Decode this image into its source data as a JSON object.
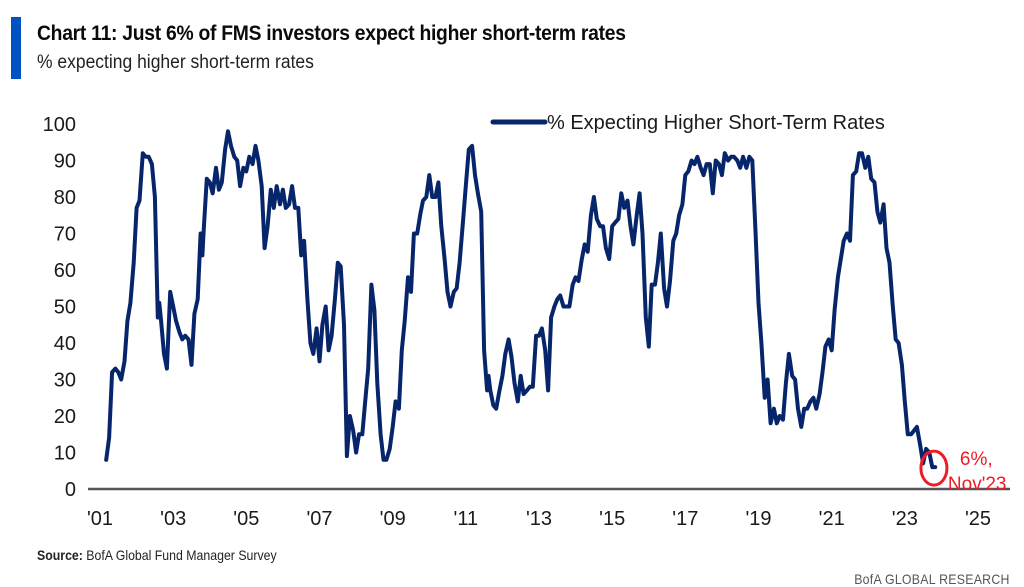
{
  "header": {
    "title": "Chart 11: Just 6% of FMS investors expect higher short-term rates",
    "subtitle": "% expecting higher short-term rates"
  },
  "footer": {
    "source_label": "Source:",
    "source_text": "BofA Global Fund Manager Survey",
    "brand": "BofA GLOBAL RESEARCH"
  },
  "colors": {
    "series": "#06256b",
    "accent_bar": "#0052c2",
    "annotation": "#ee1c25",
    "axis": "#555555"
  },
  "chart_data": {
    "type": "line",
    "title": "Chart 11: Just 6% of FMS investors expect higher short-term rates",
    "subtitle": "% expecting higher short-term rates",
    "xlabel": "",
    "ylabel": "",
    "xlim": [
      2001,
      2025
    ],
    "ylim": [
      0,
      100
    ],
    "x_ticks": [
      2001,
      2003,
      2005,
      2007,
      2009,
      2011,
      2013,
      2015,
      2017,
      2019,
      2021,
      2023,
      2025
    ],
    "x_tick_labels": [
      "'01",
      "'03",
      "'05",
      "'07",
      "'09",
      "'11",
      "'13",
      "'15",
      "'17",
      "'19",
      "'21",
      "'23",
      "'25"
    ],
    "y_ticks": [
      0,
      10,
      20,
      30,
      40,
      50,
      60,
      70,
      80,
      90,
      100
    ],
    "y_tick_labels": [
      "0",
      "10",
      "20",
      "30",
      "40",
      "50",
      "60",
      "70",
      "80",
      "90",
      "100"
    ],
    "grid": false,
    "legend": {
      "position": "top-center",
      "entries": [
        "% Expecting Higher Short-Term Rates"
      ]
    },
    "annotation": {
      "text_line1": "6%,",
      "text_line2": "Nov'23",
      "x": 2023.85,
      "y": 6
    },
    "series": [
      {
        "name": "% Expecting Higher Short-Term Rates",
        "points": [
          [
            2001.17,
            8
          ],
          [
            2001.25,
            14
          ],
          [
            2001.33,
            32
          ],
          [
            2001.42,
            33
          ],
          [
            2001.5,
            32
          ],
          [
            2001.58,
            30
          ],
          [
            2001.67,
            35
          ],
          [
            2001.75,
            46
          ],
          [
            2001.83,
            51
          ],
          [
            2001.92,
            62
          ],
          [
            2002.0,
            77
          ],
          [
            2002.08,
            79
          ],
          [
            2002.17,
            92
          ],
          [
            2002.25,
            91
          ],
          [
            2002.33,
            91
          ],
          [
            2002.42,
            89
          ],
          [
            2002.5,
            80
          ],
          [
            2002.58,
            47
          ],
          [
            2002.62,
            51
          ],
          [
            2002.67,
            46
          ],
          [
            2002.75,
            37
          ],
          [
            2002.83,
            33
          ],
          [
            2002.92,
            54
          ],
          [
            2003.0,
            50
          ],
          [
            2003.08,
            46
          ],
          [
            2003.17,
            43
          ],
          [
            2003.25,
            41
          ],
          [
            2003.33,
            42
          ],
          [
            2003.42,
            41
          ],
          [
            2003.5,
            34
          ],
          [
            2003.58,
            48
          ],
          [
            2003.67,
            52
          ],
          [
            2003.75,
            70
          ],
          [
            2003.8,
            64
          ],
          [
            2003.83,
            70
          ],
          [
            2003.92,
            85
          ],
          [
            2004.0,
            84
          ],
          [
            2004.08,
            81
          ],
          [
            2004.17,
            88
          ],
          [
            2004.25,
            82
          ],
          [
            2004.33,
            84
          ],
          [
            2004.42,
            93
          ],
          [
            2004.5,
            98
          ],
          [
            2004.58,
            94
          ],
          [
            2004.67,
            91
          ],
          [
            2004.75,
            90
          ],
          [
            2004.83,
            83
          ],
          [
            2004.92,
            88
          ],
          [
            2005.0,
            87
          ],
          [
            2005.08,
            91
          ],
          [
            2005.17,
            89
          ],
          [
            2005.25,
            94
          ],
          [
            2005.33,
            90
          ],
          [
            2005.42,
            83
          ],
          [
            2005.5,
            66
          ],
          [
            2005.58,
            72
          ],
          [
            2005.67,
            82
          ],
          [
            2005.75,
            77
          ],
          [
            2005.83,
            83
          ],
          [
            2005.92,
            78
          ],
          [
            2006.0,
            82
          ],
          [
            2006.08,
            77
          ],
          [
            2006.17,
            78
          ],
          [
            2006.25,
            83
          ],
          [
            2006.33,
            77
          ],
          [
            2006.42,
            77
          ],
          [
            2006.5,
            64
          ],
          [
            2006.58,
            68
          ],
          [
            2006.67,
            52
          ],
          [
            2006.75,
            40
          ],
          [
            2006.83,
            37
          ],
          [
            2006.92,
            44
          ],
          [
            2007.0,
            35
          ],
          [
            2007.08,
            45
          ],
          [
            2007.17,
            50
          ],
          [
            2007.25,
            38
          ],
          [
            2007.33,
            42
          ],
          [
            2007.42,
            52
          ],
          [
            2007.5,
            62
          ],
          [
            2007.58,
            61
          ],
          [
            2007.67,
            45
          ],
          [
            2007.75,
            9
          ],
          [
            2007.83,
            20
          ],
          [
            2007.92,
            16
          ],
          [
            2008.0,
            10
          ],
          [
            2008.08,
            15
          ],
          [
            2008.17,
            15
          ],
          [
            2008.25,
            24
          ],
          [
            2008.33,
            33
          ],
          [
            2008.42,
            56
          ],
          [
            2008.5,
            49
          ],
          [
            2008.58,
            29
          ],
          [
            2008.67,
            15
          ],
          [
            2008.75,
            8
          ],
          [
            2008.83,
            8
          ],
          [
            2008.92,
            11
          ],
          [
            2009.0,
            17
          ],
          [
            2009.08,
            24
          ],
          [
            2009.17,
            22
          ],
          [
            2009.25,
            38
          ],
          [
            2009.33,
            46
          ],
          [
            2009.42,
            58
          ],
          [
            2009.5,
            54
          ],
          [
            2009.58,
            70
          ],
          [
            2009.67,
            70
          ],
          [
            2009.75,
            75
          ],
          [
            2009.83,
            79
          ],
          [
            2009.92,
            80
          ],
          [
            2010.0,
            86
          ],
          [
            2010.08,
            80
          ],
          [
            2010.17,
            80
          ],
          [
            2010.25,
            84
          ],
          [
            2010.33,
            72
          ],
          [
            2010.42,
            63
          ],
          [
            2010.5,
            54
          ],
          [
            2010.58,
            50
          ],
          [
            2010.67,
            54
          ],
          [
            2010.75,
            55
          ],
          [
            2010.83,
            62
          ],
          [
            2010.92,
            73
          ],
          [
            2011.0,
            83
          ],
          [
            2011.08,
            93
          ],
          [
            2011.17,
            94
          ],
          [
            2011.25,
            86
          ],
          [
            2011.33,
            81
          ],
          [
            2011.42,
            76
          ],
          [
            2011.5,
            38
          ],
          [
            2011.58,
            27
          ],
          [
            2011.62,
            31
          ],
          [
            2011.67,
            27
          ],
          [
            2011.75,
            23
          ],
          [
            2011.83,
            22
          ],
          [
            2011.92,
            27
          ],
          [
            2012.0,
            31
          ],
          [
            2012.08,
            37
          ],
          [
            2012.17,
            41
          ],
          [
            2012.25,
            36
          ],
          [
            2012.33,
            29
          ],
          [
            2012.42,
            24
          ],
          [
            2012.5,
            31
          ],
          [
            2012.58,
            26
          ],
          [
            2012.67,
            27
          ],
          [
            2012.75,
            28
          ],
          [
            2012.83,
            28
          ],
          [
            2012.92,
            42
          ],
          [
            2013.0,
            42
          ],
          [
            2013.08,
            44
          ],
          [
            2013.17,
            38
          ],
          [
            2013.25,
            27
          ],
          [
            2013.33,
            47
          ],
          [
            2013.42,
            50
          ],
          [
            2013.5,
            52
          ],
          [
            2013.58,
            53
          ],
          [
            2013.67,
            50
          ],
          [
            2013.75,
            50
          ],
          [
            2013.83,
            50
          ],
          [
            2013.92,
            56
          ],
          [
            2014.0,
            58
          ],
          [
            2014.08,
            57
          ],
          [
            2014.17,
            63
          ],
          [
            2014.25,
            67
          ],
          [
            2014.33,
            65
          ],
          [
            2014.42,
            75
          ],
          [
            2014.5,
            80
          ],
          [
            2014.58,
            74
          ],
          [
            2014.67,
            72
          ],
          [
            2014.75,
            72
          ],
          [
            2014.83,
            66
          ],
          [
            2014.92,
            63
          ],
          [
            2015.0,
            72
          ],
          [
            2015.08,
            73
          ],
          [
            2015.17,
            74
          ],
          [
            2015.25,
            81
          ],
          [
            2015.33,
            77
          ],
          [
            2015.42,
            79
          ],
          [
            2015.5,
            72
          ],
          [
            2015.58,
            67
          ],
          [
            2015.67,
            75
          ],
          [
            2015.75,
            81
          ],
          [
            2015.83,
            70
          ],
          [
            2015.92,
            47
          ],
          [
            2016.0,
            39
          ],
          [
            2016.08,
            56
          ],
          [
            2016.17,
            56
          ],
          [
            2016.25,
            62
          ],
          [
            2016.33,
            70
          ],
          [
            2016.42,
            55
          ],
          [
            2016.5,
            50
          ],
          [
            2016.58,
            57
          ],
          [
            2016.67,
            68
          ],
          [
            2016.75,
            70
          ],
          [
            2016.83,
            75
          ],
          [
            2016.92,
            78
          ],
          [
            2017.0,
            86
          ],
          [
            2017.08,
            87
          ],
          [
            2017.17,
            90
          ],
          [
            2017.25,
            89
          ],
          [
            2017.33,
            91
          ],
          [
            2017.42,
            88
          ],
          [
            2017.5,
            86
          ],
          [
            2017.58,
            89
          ],
          [
            2017.67,
            89
          ],
          [
            2017.75,
            81
          ],
          [
            2017.83,
            90
          ],
          [
            2017.92,
            89
          ],
          [
            2018.0,
            86
          ],
          [
            2018.08,
            92
          ],
          [
            2018.17,
            90
          ],
          [
            2018.25,
            91
          ],
          [
            2018.33,
            91
          ],
          [
            2018.42,
            90
          ],
          [
            2018.5,
            88
          ],
          [
            2018.58,
            91
          ],
          [
            2018.67,
            88
          ],
          [
            2018.75,
            91
          ],
          [
            2018.83,
            90
          ],
          [
            2018.92,
            70
          ],
          [
            2019.0,
            51
          ],
          [
            2019.08,
            40
          ],
          [
            2019.17,
            25
          ],
          [
            2019.25,
            30
          ],
          [
            2019.33,
            18
          ],
          [
            2019.42,
            22
          ],
          [
            2019.5,
            18
          ],
          [
            2019.58,
            20
          ],
          [
            2019.67,
            19
          ],
          [
            2019.75,
            29
          ],
          [
            2019.83,
            37
          ],
          [
            2019.92,
            31
          ],
          [
            2020.0,
            30
          ],
          [
            2020.08,
            22
          ],
          [
            2020.17,
            17
          ],
          [
            2020.25,
            22
          ],
          [
            2020.33,
            22
          ],
          [
            2020.42,
            24
          ],
          [
            2020.5,
            25
          ],
          [
            2020.58,
            22
          ],
          [
            2020.67,
            26
          ],
          [
            2020.75,
            32
          ],
          [
            2020.83,
            39
          ],
          [
            2020.92,
            41
          ],
          [
            2021.0,
            38
          ],
          [
            2021.08,
            49
          ],
          [
            2021.17,
            58
          ],
          [
            2021.25,
            63
          ],
          [
            2021.33,
            68
          ],
          [
            2021.42,
            70
          ],
          [
            2021.5,
            68
          ],
          [
            2021.58,
            86
          ],
          [
            2021.67,
            87
          ],
          [
            2021.75,
            92
          ],
          [
            2021.83,
            92
          ],
          [
            2021.92,
            88
          ],
          [
            2022.0,
            91
          ],
          [
            2022.08,
            85
          ],
          [
            2022.17,
            84
          ],
          [
            2022.25,
            76
          ],
          [
            2022.33,
            73
          ],
          [
            2022.42,
            78
          ],
          [
            2022.5,
            66
          ],
          [
            2022.58,
            62
          ],
          [
            2022.67,
            50
          ],
          [
            2022.75,
            41
          ],
          [
            2022.83,
            40
          ],
          [
            2022.92,
            34
          ],
          [
            2023.0,
            24
          ],
          [
            2023.08,
            15
          ],
          [
            2023.17,
            15
          ],
          [
            2023.25,
            16
          ],
          [
            2023.33,
            17
          ],
          [
            2023.42,
            12
          ],
          [
            2023.5,
            7
          ],
          [
            2023.58,
            11
          ],
          [
            2023.67,
            10
          ],
          [
            2023.75,
            6
          ],
          [
            2023.83,
            6
          ]
        ]
      }
    ]
  }
}
